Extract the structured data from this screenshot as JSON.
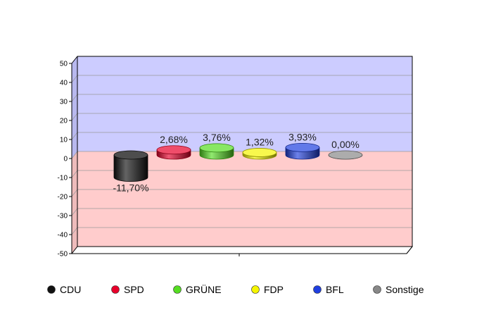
{
  "chart_data": {
    "type": "bar",
    "categories": [
      "CDU",
      "SPD",
      "GRÜNE",
      "FDP",
      "BFL",
      "Sonstige"
    ],
    "values": [
      -11.7,
      2.68,
      3.76,
      1.32,
      3.93,
      0.0
    ],
    "value_labels": [
      "-11,70%",
      "2,68%",
      "3,76%",
      "1,32%",
      "3,93%",
      "0,00%"
    ],
    "colors": [
      "#111111",
      "#e8002a",
      "#55dd22",
      "#f5f500",
      "#1f3fe0",
      "#888888"
    ],
    "ylim": [
      -50,
      50
    ],
    "yticks": [
      50,
      40,
      30,
      20,
      10,
      0,
      -10,
      -20,
      -30,
      -40,
      -50
    ],
    "grid": true,
    "positive_background": "#ccccff",
    "negative_background": "#ffcccc",
    "legend_position": "bottom",
    "title": "",
    "xlabel": "",
    "ylabel": ""
  }
}
